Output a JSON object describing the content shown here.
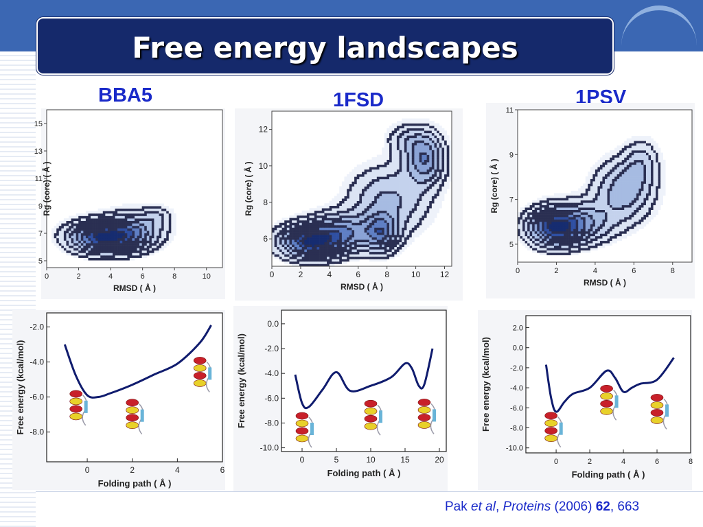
{
  "slide": {
    "title": "Free energy landscapes",
    "citation": {
      "author": "Pak",
      "etal": "et al",
      "journal": "Proteins",
      "year": "(2006)",
      "volume": "62",
      "pages": "663"
    }
  },
  "colors": {
    "title_bg": "#15296b",
    "accent": "#1a2ac9",
    "header_band": "#3b67b3",
    "curve": "#101c6e"
  },
  "proteins": [
    "BBA5",
    "1FSD",
    "1PSV"
  ],
  "chart_data": [
    {
      "type": "heatmap",
      "title": "BBA5",
      "xlabel": "RMSD ( Å )",
      "ylabel": "Rg (core) ( Å )",
      "xlim": [
        0,
        11
      ],
      "ylim": [
        4.5,
        16
      ],
      "xticks": [
        "0",
        "2",
        "4",
        "6",
        "8",
        "10"
      ],
      "yticks": [
        "5",
        "7",
        "9",
        "11",
        "13",
        "15"
      ],
      "basins": [
        {
          "x": 3.6,
          "y": 6.8,
          "sx": 1.4,
          "sy": 0.75,
          "w": 1.0
        },
        {
          "x": 5.6,
          "y": 7.3,
          "sx": 1.2,
          "sy": 0.9,
          "w": 0.45
        },
        {
          "x": 7.0,
          "y": 8.3,
          "sx": 0.6,
          "sy": 0.5,
          "w": 0.15
        }
      ]
    },
    {
      "type": "heatmap",
      "title": "1FSD",
      "xlabel": "RMSD ( Å )",
      "ylabel": "Rg (core) ( Å )",
      "xlim": [
        0,
        12.5
      ],
      "ylim": [
        4.5,
        13
      ],
      "xticks": [
        "0",
        "2",
        "4",
        "6",
        "8",
        "10",
        "12"
      ],
      "yticks": [
        "6",
        "8",
        "10",
        "12"
      ],
      "basins": [
        {
          "x": 2.7,
          "y": 5.9,
          "sx": 1.4,
          "sy": 0.6,
          "w": 1.0
        },
        {
          "x": 5.0,
          "y": 6.4,
          "sx": 1.5,
          "sy": 0.7,
          "w": 0.6
        },
        {
          "x": 7.7,
          "y": 6.4,
          "sx": 0.8,
          "sy": 0.7,
          "w": 0.6
        },
        {
          "x": 8.2,
          "y": 8.2,
          "sx": 1.8,
          "sy": 1.2,
          "w": 0.4
        },
        {
          "x": 10.7,
          "y": 10.4,
          "sx": 0.9,
          "sy": 0.9,
          "w": 0.65
        },
        {
          "x": 9.6,
          "y": 11.5,
          "sx": 1.0,
          "sy": 0.6,
          "w": 0.25
        }
      ]
    },
    {
      "type": "heatmap",
      "title": "1PSV",
      "xlabel": "RMSD ( Å )",
      "ylabel": "Rg (core) ( Å )",
      "xlim": [
        0,
        9
      ],
      "ylim": [
        4.2,
        11
      ],
      "xticks": [
        "0",
        "2",
        "4",
        "6",
        "8"
      ],
      "yticks": [
        "5",
        "7",
        "9",
        "11"
      ],
      "basins": [
        {
          "x": 1.9,
          "y": 5.8,
          "sx": 0.9,
          "sy": 0.55,
          "w": 1.0
        },
        {
          "x": 3.3,
          "y": 6.0,
          "sx": 1.1,
          "sy": 0.6,
          "w": 0.55
        },
        {
          "x": 5.5,
          "y": 7.4,
          "sx": 1.0,
          "sy": 0.9,
          "w": 0.5
        },
        {
          "x": 6.4,
          "y": 8.6,
          "sx": 0.6,
          "sy": 0.7,
          "w": 0.3
        }
      ]
    },
    {
      "type": "line",
      "title": "BBA5",
      "xlabel": "Folding path ( Å )",
      "ylabel": "Free energy (kcal/mol)",
      "xlim": [
        -1.8,
        6
      ],
      "ylim": [
        -9.7,
        -1.2
      ],
      "xticks": [
        "0",
        "2",
        "4",
        "6"
      ],
      "yticks": [
        "-2.0",
        "-4.0",
        "-6.0",
        "-8.0"
      ],
      "series": [
        {
          "x": [
            -1.0,
            -0.5,
            0,
            0.5,
            1,
            2,
            3,
            4,
            5,
            5.5
          ],
          "y": [
            -3.0,
            -4.8,
            -5.9,
            -6.0,
            -5.8,
            -5.3,
            -4.7,
            -4.1,
            -2.9,
            -1.9
          ]
        }
      ]
    },
    {
      "type": "line",
      "title": "1FSD",
      "xlabel": "Folding path ( Å )",
      "ylabel": "Free energy (kcal/mol)",
      "xlim": [
        -3,
        21
      ],
      "ylim": [
        -10.3,
        1.1
      ],
      "xticks": [
        "0",
        "5",
        "10",
        "15",
        "20"
      ],
      "yticks": [
        "0.0",
        "-2.0",
        "-4.0",
        "-6.0",
        "-8.0",
        "-10.0"
      ],
      "series": [
        {
          "x": [
            -1,
            0,
            1,
            3,
            5,
            7,
            10,
            13,
            15,
            16,
            17,
            17.8,
            19
          ],
          "y": [
            -4.1,
            -6.4,
            -6.7,
            -5.3,
            -3.9,
            -5.4,
            -5.0,
            -4.3,
            -3.2,
            -3.6,
            -5.0,
            -4.9,
            -2.0
          ]
        }
      ]
    },
    {
      "type": "line",
      "title": "1PSV",
      "xlabel": "Folding path ( Å )",
      "ylabel": "Free energy (kcal/mol)",
      "xlim": [
        -1.8,
        8
      ],
      "ylim": [
        -10.5,
        3.2
      ],
      "xticks": [
        "0",
        "2",
        "4",
        "6",
        "8"
      ],
      "yticks": [
        "2.0",
        "0.0",
        "-2.0",
        "-4.0",
        "-6.0",
        "-8.0",
        "-10.0"
      ],
      "series": [
        {
          "x": [
            -0.6,
            -0.3,
            0,
            0.5,
            1,
            2,
            3,
            3.5,
            4,
            4.5,
            5,
            6,
            7
          ],
          "y": [
            -1.7,
            -5.0,
            -6.4,
            -5.4,
            -4.6,
            -4.0,
            -2.3,
            -3.0,
            -4.4,
            -4.0,
            -3.6,
            -3.2,
            -1.0
          ]
        }
      ]
    }
  ]
}
